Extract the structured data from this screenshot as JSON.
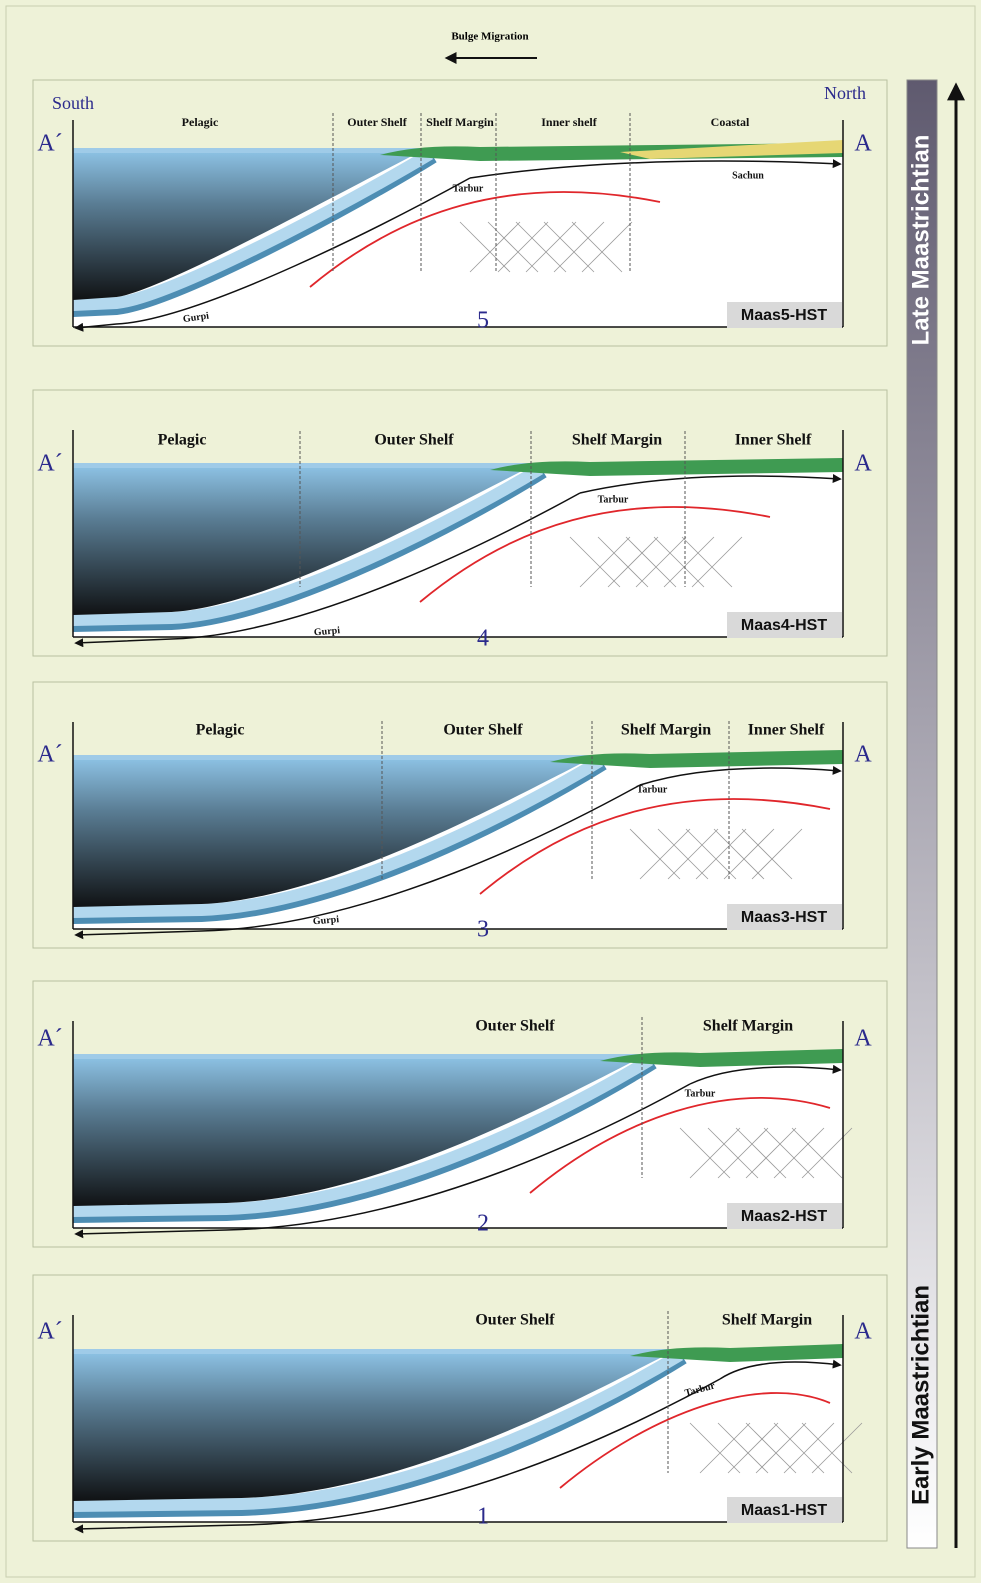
{
  "header": {
    "title": "Bulge Migration"
  },
  "timeline": {
    "top": "Late Maastrichtian",
    "bottom": "Early Maastrichtian"
  },
  "panels": [
    {
      "number": "5",
      "name": "Maas5-HST",
      "left_end": "A´",
      "right_end": "A",
      "south": "South",
      "north": "North",
      "zones": [
        "Pelagic",
        "Outer Shelf",
        "Shelf Margin",
        "Inner shelf",
        "Coastal"
      ],
      "formations": [
        "Tarbur",
        "Sachun",
        "Gurpi"
      ]
    },
    {
      "number": "4",
      "name": "Maas4-HST",
      "left_end": "A´",
      "right_end": "A",
      "zones": [
        "Pelagic",
        "Outer Shelf",
        "Shelf Margin",
        "Inner Shelf"
      ],
      "formations": [
        "Tarbur",
        "Gurpi"
      ]
    },
    {
      "number": "3",
      "name": "Maas3-HST",
      "left_end": "A´",
      "right_end": "A",
      "zones": [
        "Pelagic",
        "Outer Shelf",
        "Shelf Margin",
        "Inner Shelf"
      ],
      "formations": [
        "Tarbur",
        "Gurpi"
      ]
    },
    {
      "number": "2",
      "name": "Maas2-HST",
      "left_end": "A´",
      "right_end": "A",
      "zones": [
        "Outer Shelf",
        "Shelf Margin"
      ],
      "formations": [
        "Tarbur"
      ]
    },
    {
      "number": "1",
      "name": "Maas1-HST",
      "left_end": "A´",
      "right_end": "A",
      "zones": [
        "Outer Shelf",
        "Shelf Margin"
      ],
      "formations": [
        "Tarbur"
      ]
    }
  ]
}
